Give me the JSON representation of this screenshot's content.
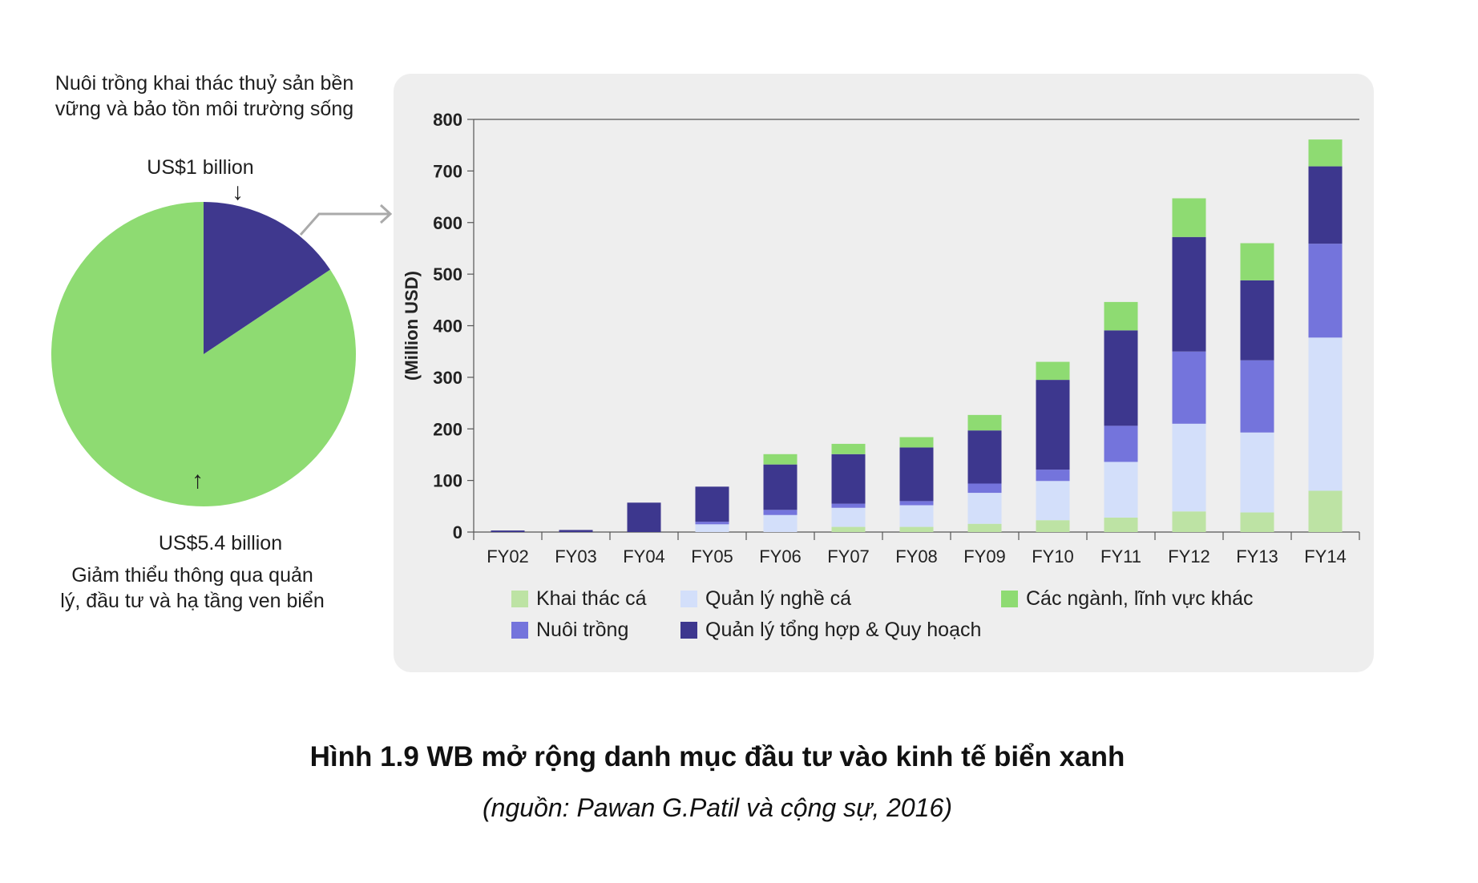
{
  "pie": {
    "slices": [
      {
        "key": "green",
        "value": 5.4,
        "label_value": "US$5.4 billion",
        "label_desc": "Giảm thiểu thông qua quản lý, đầu tư và hạ tầng ven biển",
        "color": "#8edb72"
      },
      {
        "key": "blue",
        "value": 1.0,
        "label_value": "US$1 billion",
        "label_desc": "Nuôi trồng khai thác thuỷ sản bền vững và bảo tồn môi trường sống",
        "color": "#3f388e"
      }
    ],
    "arrow_down": "↓",
    "arrow_up": "↑"
  },
  "chart_data": {
    "type": "bar",
    "stacked": true,
    "ylabel": "(Million USD)",
    "ylim": [
      0,
      800
    ],
    "yticks": [
      0,
      100,
      200,
      300,
      400,
      500,
      600,
      700,
      800
    ],
    "categories": [
      "FY02",
      "FY03",
      "FY04",
      "FY05",
      "FY06",
      "FY07",
      "FY08",
      "FY09",
      "FY10",
      "FY11",
      "FY12",
      "FY13",
      "FY14"
    ],
    "series": [
      {
        "name": "Khai thác cá",
        "color": "#bde3a4",
        "values": [
          0,
          0,
          0,
          0,
          0,
          10,
          10,
          16,
          23,
          28,
          40,
          38,
          80
        ]
      },
      {
        "name": "Quản lý nghề cá",
        "color": "#d3dffa",
        "values": [
          0,
          0,
          0,
          15,
          33,
          37,
          42,
          60,
          76,
          108,
          170,
          155,
          297
        ]
      },
      {
        "name": "Nuôi trồng",
        "color": "#7474dc",
        "values": [
          0,
          0,
          0,
          5,
          10,
          8,
          8,
          18,
          22,
          70,
          140,
          140,
          182
        ]
      },
      {
        "name": "Quản lý tổng hợp & Quy hoạch",
        "color": "#3d378e",
        "values": [
          3,
          4,
          57,
          68,
          88,
          96,
          104,
          103,
          174,
          185,
          222,
          155,
          150
        ]
      },
      {
        "name": "Các ngành, lĩnh vực khác",
        "color": "#8edb72",
        "values": [
          0,
          0,
          0,
          0,
          20,
          20,
          20,
          30,
          35,
          55,
          75,
          72,
          52
        ]
      }
    ],
    "legend_order": [
      0,
      1,
      4,
      2,
      3
    ]
  },
  "caption": {
    "title": "Hình 1.9 WB mở rộng danh mục đầu tư vào kinh tế biển xanh",
    "source": "(nguồn: Pawan G.Patil và cộng sự, 2016)"
  }
}
